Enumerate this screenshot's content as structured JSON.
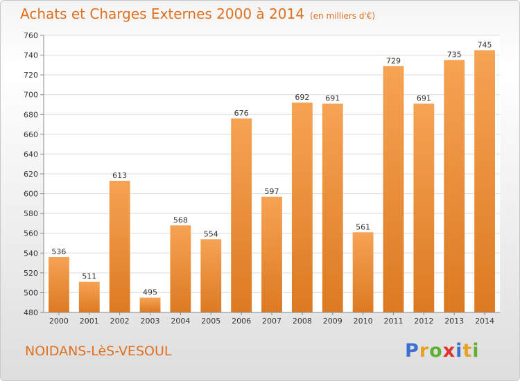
{
  "title": "Achats et Charges Externes 2000 à 2014",
  "subtitle": "(en milliers d'€)",
  "town": "NOIDANS-LèS-VESOUL",
  "logo": {
    "letters": [
      "P",
      "r",
      "o",
      "x",
      "i",
      "t",
      "i"
    ],
    "colors": [
      "#3b6fd1",
      "#e8a020",
      "#5fb02e",
      "#e03030",
      "#3b6fd1",
      "#e8a020",
      "#5fb02e"
    ]
  },
  "colors": {
    "accent": "#e0701e",
    "bar_top": "#f6a354",
    "bar_bottom": "#dc7a22"
  },
  "chart_data": {
    "type": "bar",
    "categories": [
      "2000",
      "2001",
      "2002",
      "2003",
      "2004",
      "2005",
      "2006",
      "2007",
      "2008",
      "2009",
      "2010",
      "2011",
      "2012",
      "2013",
      "2014"
    ],
    "values": [
      536,
      511,
      613,
      495,
      568,
      554,
      676,
      597,
      692,
      691,
      561,
      729,
      691,
      735,
      745
    ],
    "yticks": [
      480,
      500,
      520,
      540,
      560,
      580,
      600,
      620,
      640,
      660,
      680,
      700,
      720,
      740,
      760
    ],
    "ylim": [
      480,
      760
    ],
    "grid": true,
    "legend": "none"
  }
}
